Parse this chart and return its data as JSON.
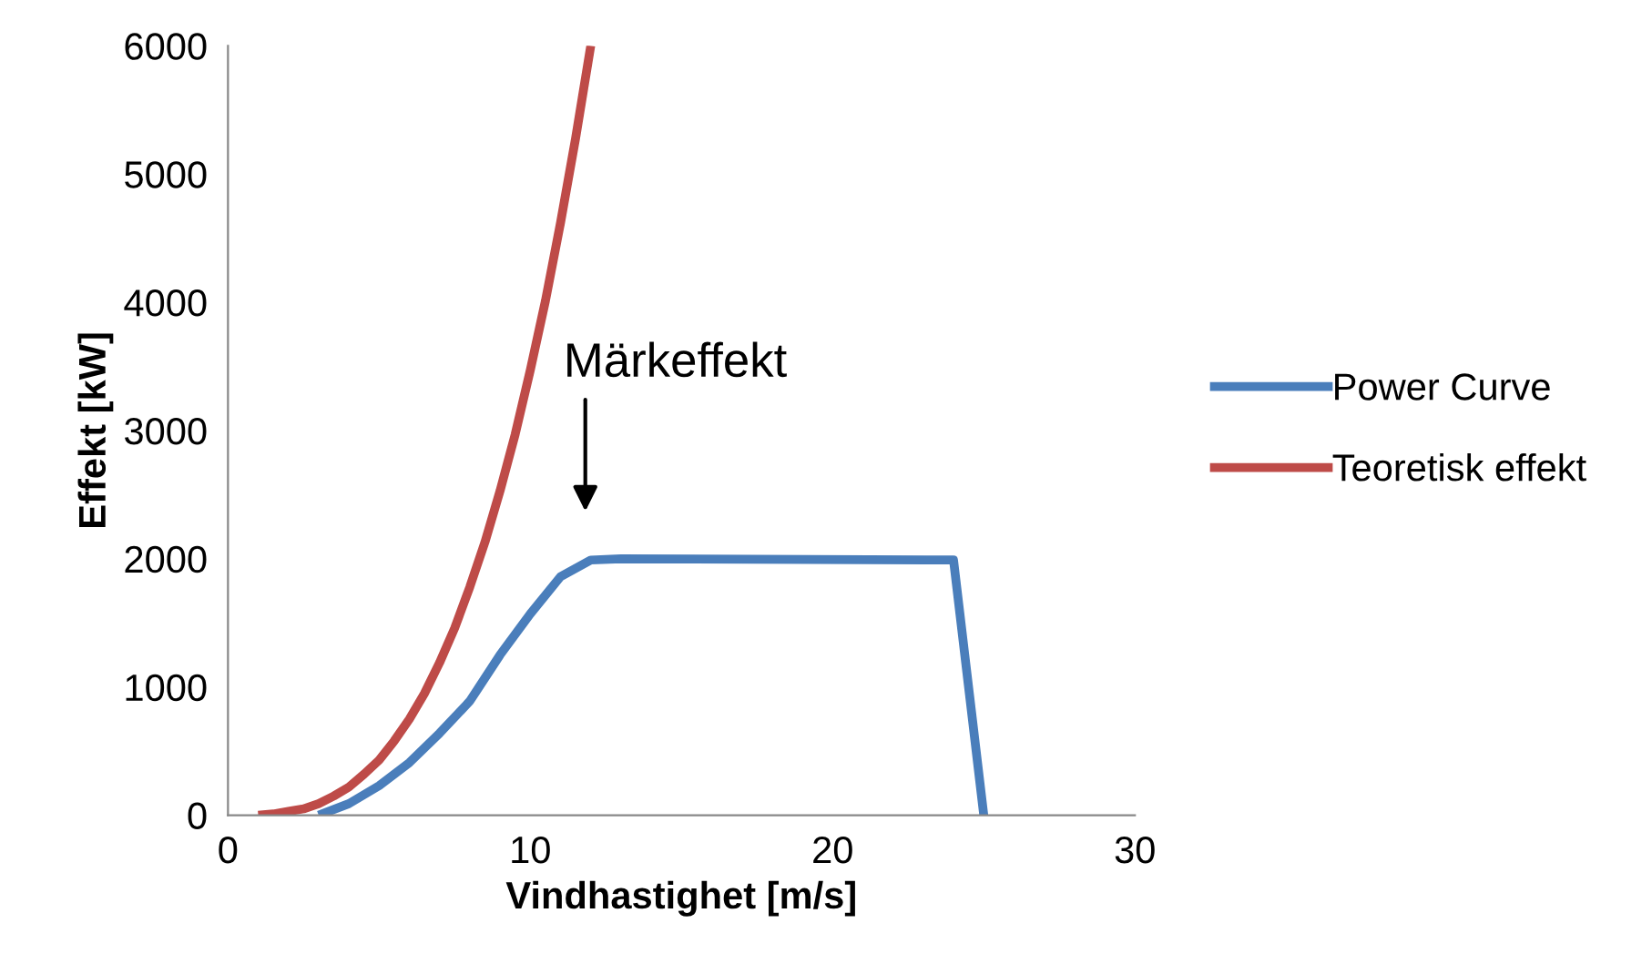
{
  "chart_data": {
    "type": "line",
    "xlabel": "Vindhastighet [m/s]",
    "ylabel": "Effekt [kW]",
    "xlim": [
      0,
      30
    ],
    "xticks": [
      0,
      10,
      20,
      30
    ],
    "ylim": [
      0,
      6000
    ],
    "yticks": [
      0,
      1000,
      2000,
      3000,
      4000,
      5000,
      6000
    ],
    "grid": false,
    "legend": "right",
    "marker": "none",
    "line_style": "solid",
    "annotations": [
      "Märkeffekt"
    ],
    "series": [
      {
        "name": "Power Curve",
        "color": "#4a7ebb",
        "x": [
          3,
          4,
          5,
          6,
          7,
          8,
          9,
          10,
          11,
          12,
          13,
          24,
          25
        ],
        "values": [
          0,
          90,
          230,
          410,
          640,
          890,
          1250,
          1570,
          1860,
          1990,
          2000,
          1990,
          0
        ]
      },
      {
        "name": "Teoretisk effekt",
        "color": "#be4b48",
        "x": [
          1,
          1.5,
          2,
          2.5,
          3,
          3.5,
          4,
          4.5,
          5,
          5.5,
          6,
          6.5,
          7,
          7.5,
          8,
          8.5,
          9,
          9.5,
          10,
          10.5,
          11,
          11.5,
          12
        ],
        "values": [
          0,
          10,
          30,
          50,
          90,
          150,
          220,
          320,
          430,
          580,
          750,
          950,
          1190,
          1460,
          1780,
          2130,
          2530,
          2970,
          3470,
          4010,
          4620,
          5280,
          6000
        ]
      }
    ]
  }
}
